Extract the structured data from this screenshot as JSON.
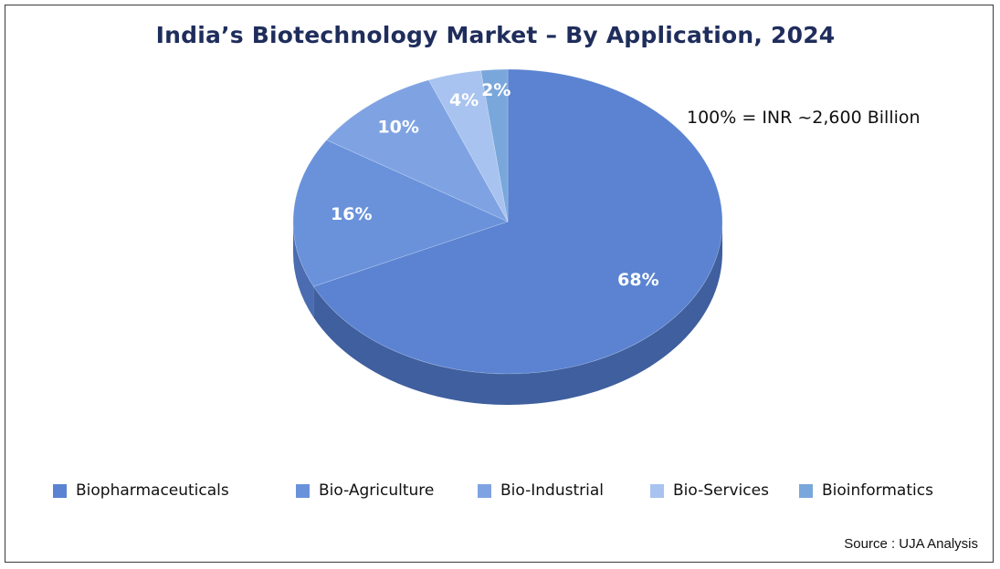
{
  "chart_data": {
    "type": "pie",
    "title": "India’s Biotechnology Market – By Application, 2024",
    "annotation": "100% = INR ~2,600 Billion",
    "source": "Source : UJA Analysis",
    "legend_position": "bottom",
    "categories": [
      "Biopharmaceuticals",
      "Bio-Agriculture",
      "Bio-Industrial",
      "Bio-Services",
      "Bioinformatics"
    ],
    "values": [
      68,
      16,
      10,
      4,
      2
    ],
    "value_labels": [
      "68%",
      "16%",
      "10%",
      "4%",
      "2%"
    ],
    "colors": [
      "#5b83d1",
      "#6a92db",
      "#7fa3e2",
      "#a8c3ef",
      "#7aa7db"
    ],
    "side_colors": [
      "#3f5f9e",
      "#4b6cb0",
      "#5a7dc2",
      "#86a3d6",
      "#5884bd"
    ]
  }
}
